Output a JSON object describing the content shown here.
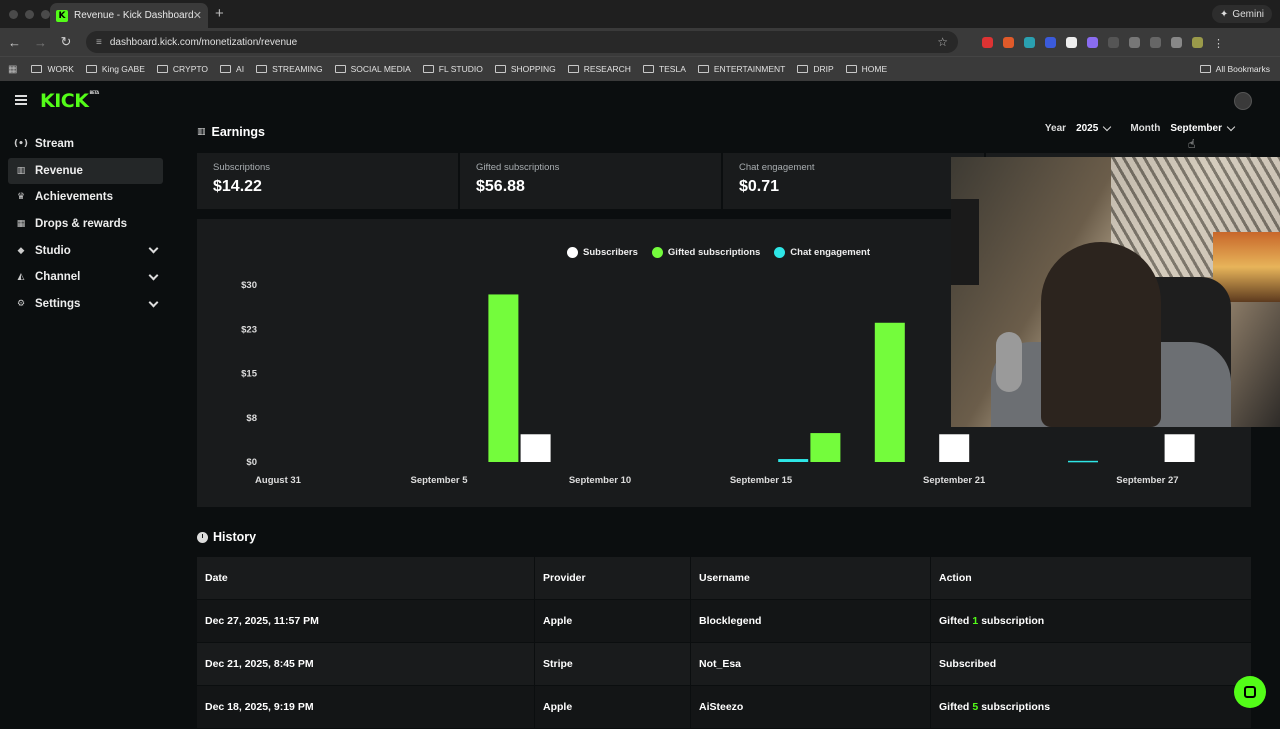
{
  "browser": {
    "tab_title": "Revenue - Kick Dashboard",
    "tab_favicon": "K",
    "new_tab": "+",
    "gemini_label": "Gemini",
    "url": "dashboard.kick.com/monetization/revenue",
    "bookmarks": [
      "WORK",
      "King GABE",
      "CRYPTO",
      "AI",
      "STREAMING",
      "SOCIAL MEDIA",
      "FL STUDIO",
      "SHOPPING",
      "RESEARCH",
      "TESLA",
      "ENTERTAINMENT",
      "DRIP",
      "HOME"
    ],
    "all_bookmarks": "All Bookmarks"
  },
  "app": {
    "logo": "KICK",
    "logo_badge": "BETA"
  },
  "sidebar": {
    "items": [
      {
        "label": "Stream",
        "icon": "broadcast-icon",
        "glyph": "(•)",
        "active": false,
        "expandable": false
      },
      {
        "label": "Revenue",
        "icon": "chart-icon",
        "glyph": "▥",
        "active": true,
        "expandable": false
      },
      {
        "label": "Achievements",
        "icon": "trophy-icon",
        "glyph": "♛",
        "active": false,
        "expandable": false
      },
      {
        "label": "Drops & rewards",
        "icon": "drops-icon",
        "glyph": "▦",
        "active": false,
        "expandable": false
      },
      {
        "label": "Studio",
        "icon": "studio-icon",
        "glyph": "◆",
        "active": false,
        "expandable": true
      },
      {
        "label": "Channel",
        "icon": "channel-icon",
        "glyph": "◭",
        "active": false,
        "expandable": true
      },
      {
        "label": "Settings",
        "icon": "gear-icon",
        "glyph": "⚙",
        "active": false,
        "expandable": true
      }
    ]
  },
  "earnings": {
    "title": "Earnings",
    "year_label": "Year",
    "year_value": "2025",
    "month_label": "Month",
    "month_value": "September",
    "stats": [
      {
        "label": "Subscriptions",
        "value": "$14.22"
      },
      {
        "label": "Gifted subscriptions",
        "value": "$56.88"
      },
      {
        "label": "Chat engagement",
        "value": "$0.71"
      }
    ]
  },
  "chart_data": {
    "type": "bar",
    "legend_position": "top",
    "grid": false,
    "series": [
      {
        "name": "Subscribers",
        "color": "#ffffff"
      },
      {
        "name": "Gifted subscriptions",
        "color": "#74fc3c"
      },
      {
        "name": "Chat engagement",
        "color": "#2ee6e6"
      }
    ],
    "y_ticks": [
      "$30",
      "$23",
      "$15",
      "$8",
      "$0"
    ],
    "ylim": [
      0,
      30
    ],
    "x_ticks": [
      "August 31",
      "September 5",
      "September 10",
      "September 15",
      "September 21",
      "September 27"
    ],
    "bars": [
      {
        "date": "September 7",
        "series": "Gifted subscriptions",
        "value": 28.4
      },
      {
        "date": "September 8",
        "series": "Subscribers",
        "value": 4.7
      },
      {
        "date": "September 16",
        "series": "Chat engagement",
        "value": 0.5
      },
      {
        "date": "September 17",
        "series": "Gifted subscriptions",
        "value": 4.9
      },
      {
        "date": "September 19",
        "series": "Gifted subscriptions",
        "value": 23.6
      },
      {
        "date": "September 21",
        "series": "Subscribers",
        "value": 4.7
      },
      {
        "date": "September 25",
        "series": "Chat engagement",
        "value": 0.2
      },
      {
        "date": "September 28",
        "series": "Subscribers",
        "value": 4.7
      }
    ]
  },
  "history": {
    "title": "History",
    "columns": [
      "Date",
      "Provider",
      "Username",
      "Action"
    ],
    "rows": [
      {
        "date": "Dec 27, 2025, 11:57 PM",
        "provider": "Apple",
        "username": "Blocklegend",
        "action_pre": "Gifted",
        "action_count": "1",
        "action_post": "subscription"
      },
      {
        "date": "Dec 21, 2025, 8:45 PM",
        "provider": "Stripe",
        "username": "Not_Esa",
        "action_pre": "Subscribed",
        "action_count": "",
        "action_post": ""
      },
      {
        "date": "Dec 18, 2025, 9:19 PM",
        "provider": "Apple",
        "username": "AiSteezo",
        "action_pre": "Gifted",
        "action_count": "5",
        "action_post": "subscriptions"
      }
    ]
  },
  "colors": {
    "brand_green": "#53fc18",
    "background": "#0b0e0f",
    "card": "#191b1c"
  }
}
